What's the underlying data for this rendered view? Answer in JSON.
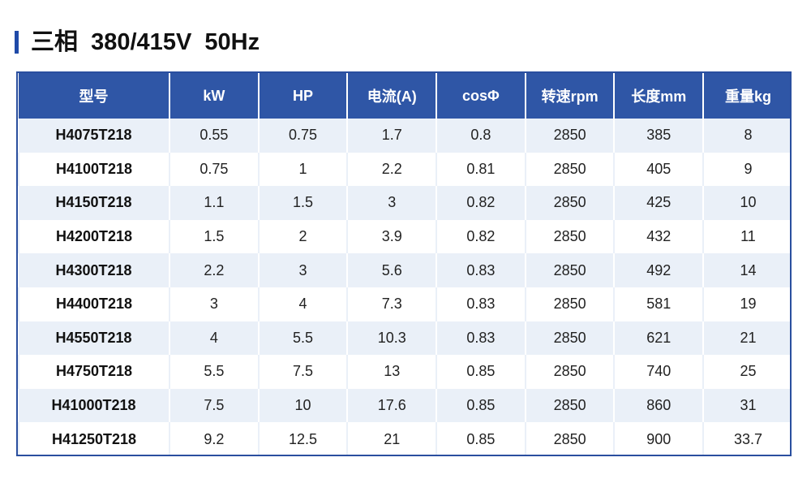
{
  "title": "三相  380/415V  50Hz",
  "table": {
    "headers": [
      "型号",
      "kW",
      "HP",
      "电流(A)",
      "cosΦ",
      "转速rpm",
      "长度mm",
      "重量kg"
    ],
    "rows": [
      [
        "H4075T218",
        "0.55",
        "0.75",
        "1.7",
        "0.8",
        "2850",
        "385",
        "8"
      ],
      [
        "H4100T218",
        "0.75",
        "1",
        "2.2",
        "0.81",
        "2850",
        "405",
        "9"
      ],
      [
        "H4150T218",
        "1.1",
        "1.5",
        "3",
        "0.82",
        "2850",
        "425",
        "10"
      ],
      [
        "H4200T218",
        "1.5",
        "2",
        "3.9",
        "0.82",
        "2850",
        "432",
        "11"
      ],
      [
        "H4300T218",
        "2.2",
        "3",
        "5.6",
        "0.83",
        "2850",
        "492",
        "14"
      ],
      [
        "H4400T218",
        "3",
        "4",
        "7.3",
        "0.83",
        "2850",
        "581",
        "19"
      ],
      [
        "H4550T218",
        "4",
        "5.5",
        "10.3",
        "0.83",
        "2850",
        "621",
        "21"
      ],
      [
        "H4750T218",
        "5.5",
        "7.5",
        "13",
        "0.85",
        "2850",
        "740",
        "25"
      ],
      [
        "H41000T218",
        "7.5",
        "10",
        "17.6",
        "0.85",
        "2850",
        "860",
        "31"
      ],
      [
        "H41250T218",
        "9.2",
        "12.5",
        "21",
        "0.85",
        "2850",
        "900",
        "33.7"
      ]
    ]
  },
  "colors": {
    "accent": "#1f4aa8",
    "header_bg": "#2f56a6",
    "stripe_bg": "#eaf0f8"
  }
}
